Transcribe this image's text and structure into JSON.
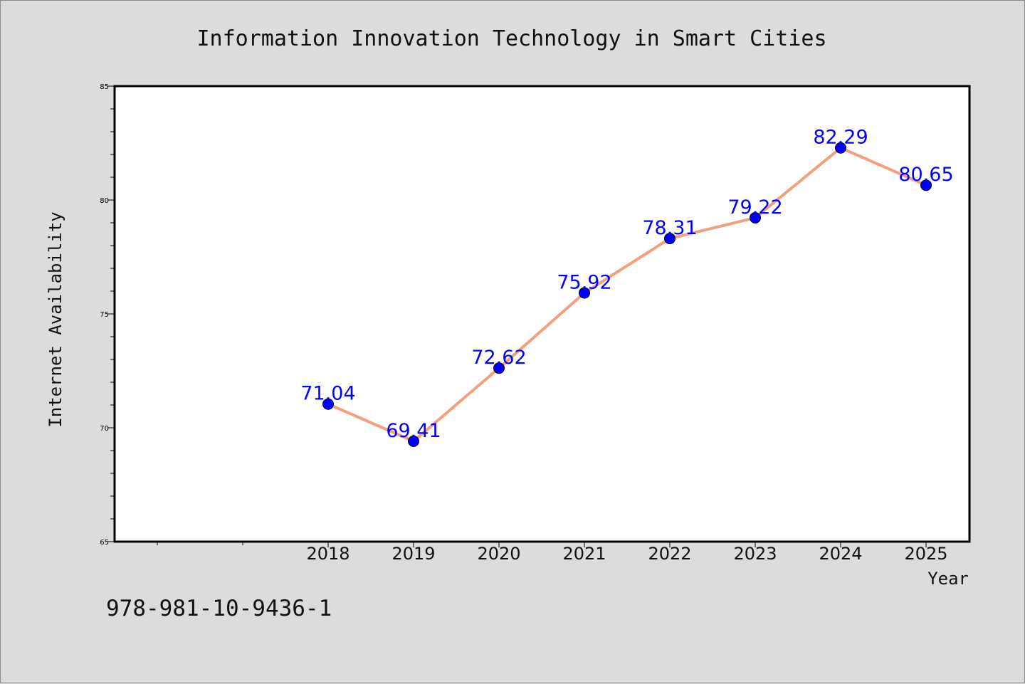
{
  "chart_data": {
    "type": "line",
    "title": "Information Innovation Technology in Smart Cities",
    "xlabel": "Year",
    "ylabel": "Internet Availability",
    "categories": [
      "2018",
      "2019",
      "2020",
      "2021",
      "2022",
      "2023",
      "2024",
      "2025"
    ],
    "series": [
      {
        "values": [
          71.04,
          69.41,
          72.62,
          75.92,
          78.31,
          79.22,
          82.29,
          80.65
        ],
        "data_labels": [
          "71.04",
          "69.41",
          "72.62",
          "75.92",
          "78.31",
          "79.22",
          "82.29",
          "80.65"
        ]
      }
    ],
    "ylim": [
      65,
      85
    ],
    "yticks": [
      "65",
      "70",
      "75",
      "80",
      "85"
    ],
    "grid": false,
    "line_color": "#f4a07e",
    "marker_color": "#0000ff",
    "label_color": "#0000ff"
  },
  "isbn_text": "978-981-10-9436-1"
}
